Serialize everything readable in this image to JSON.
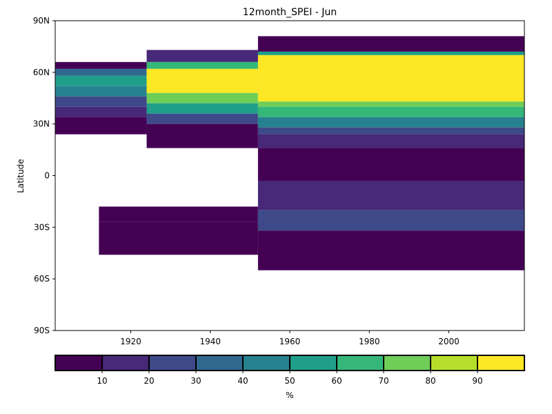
{
  "chart_data": {
    "type": "heatmap",
    "title": "12month_SPEI - Jun",
    "xlabel": "",
    "ylabel": "Latitude",
    "xlim": [
      1901,
      2019
    ],
    "ylim": [
      -90,
      90
    ],
    "x_ticks": [
      1920,
      1940,
      1960,
      1980,
      2000
    ],
    "y_ticks": [
      {
        "value": 90,
        "label": "90N"
      },
      {
        "value": 60,
        "label": "60N"
      },
      {
        "value": 30,
        "label": "30N"
      },
      {
        "value": 0,
        "label": "0"
      },
      {
        "value": -30,
        "label": "30S"
      },
      {
        "value": -60,
        "label": "60S"
      },
      {
        "value": -90,
        "label": "90S"
      }
    ],
    "grid": false,
    "colorbar": {
      "label": "%",
      "orientation": "horizontal",
      "placement": "bottom",
      "range": [
        0,
        100
      ],
      "levels": [
        0,
        10,
        20,
        30,
        40,
        50,
        60,
        70,
        80,
        90,
        100
      ],
      "tick_labels": [
        "10",
        "20",
        "30",
        "40",
        "50",
        "60",
        "70",
        "80",
        "90"
      ],
      "colors": [
        "#440154",
        "#482878",
        "#3e4989",
        "#31688e",
        "#26828e",
        "#1f9e89",
        "#35b779",
        "#6ece58",
        "#b5de2b",
        "#fde725"
      ]
    },
    "bands": [
      {
        "period": [
          1901,
          1924
        ],
        "lat_range": [
          24,
          66
        ],
        "profile": [
          {
            "lat": [
              62,
              66
            ],
            "value": 5
          },
          {
            "lat": [
              58,
              62
            ],
            "value": 30
          },
          {
            "lat": [
              52,
              58
            ],
            "value": 55
          },
          {
            "lat": [
              46,
              52
            ],
            "value": 40
          },
          {
            "lat": [
              40,
              46
            ],
            "value": 25
          },
          {
            "lat": [
              34,
              40
            ],
            "value": 15
          },
          {
            "lat": [
              24,
              34
            ],
            "value": 5
          }
        ]
      },
      {
        "period": [
          1924,
          1952
        ],
        "lat_range": [
          16,
          73
        ],
        "profile": [
          {
            "lat": [
              66,
              73
            ],
            "value": 15
          },
          {
            "lat": [
              62,
              66
            ],
            "value": 60
          },
          {
            "lat": [
              48,
              62
            ],
            "value": 92
          },
          {
            "lat": [
              42,
              48
            ],
            "value": 70
          },
          {
            "lat": [
              36,
              42
            ],
            "value": 50
          },
          {
            "lat": [
              30,
              36
            ],
            "value": 25
          },
          {
            "lat": [
              16,
              30
            ],
            "value": 5
          }
        ]
      },
      {
        "period": [
          1952,
          2019
        ],
        "lat_range": [
          -55,
          81
        ],
        "profile": [
          {
            "lat": [
              72,
              81
            ],
            "value": 5
          },
          {
            "lat": [
              70,
              72
            ],
            "value": 55
          },
          {
            "lat": [
              43,
              70
            ],
            "value": 95
          },
          {
            "lat": [
              40,
              43
            ],
            "value": 75
          },
          {
            "lat": [
              34,
              40
            ],
            "value": 60
          },
          {
            "lat": [
              28,
              34
            ],
            "value": 45
          },
          {
            "lat": [
              24,
              28
            ],
            "value": 25
          },
          {
            "lat": [
              16,
              24
            ],
            "value": 15
          },
          {
            "lat": [
              -3,
              16
            ],
            "value": 5
          },
          {
            "lat": [
              -20,
              -3
            ],
            "value": 15
          },
          {
            "lat": [
              -32,
              -20
            ],
            "value": 25
          },
          {
            "lat": [
              -55,
              -32
            ],
            "value": 5
          }
        ]
      },
      {
        "period": [
          1912,
          1952
        ],
        "lat_range": [
          -46,
          -18
        ],
        "profile": [
          {
            "lat": [
              -27,
              -18
            ],
            "value": 5
          },
          {
            "lat": [
              -46,
              -27
            ],
            "value": 5
          }
        ]
      }
    ]
  }
}
